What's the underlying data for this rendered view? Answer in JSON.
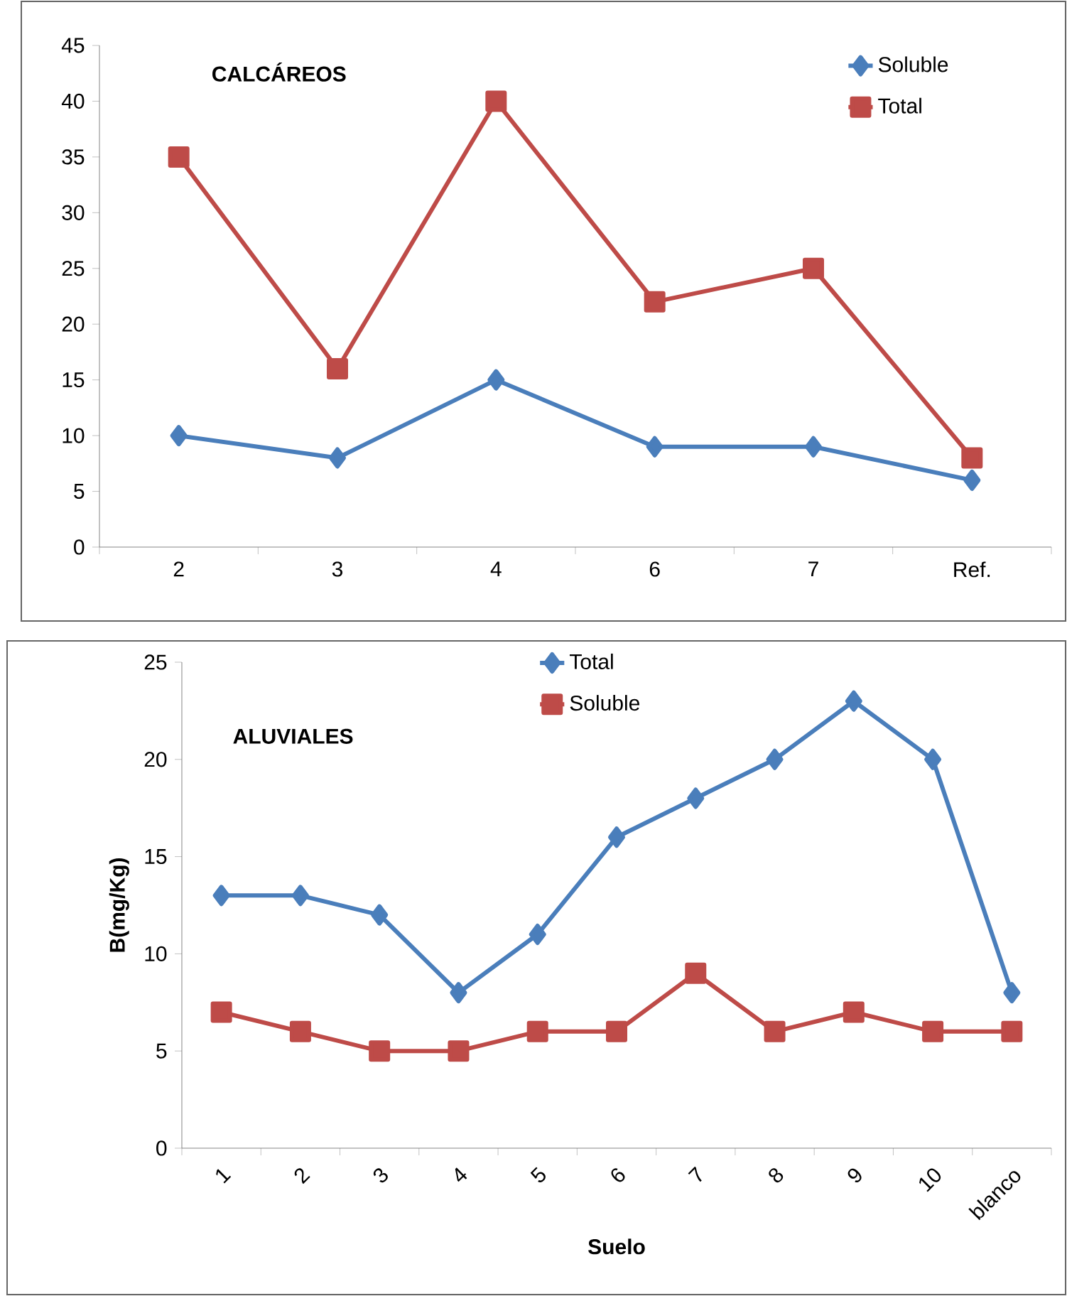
{
  "chart_data": [
    {
      "type": "line",
      "title": "CALCÁREOS",
      "categories": [
        "2",
        "3",
        "4",
        "6",
        "7",
        "Ref."
      ],
      "series": [
        {
          "name": "Soluble",
          "color": "#4a7ebb",
          "marker": "diamond",
          "values": [
            10,
            8,
            15,
            9,
            9,
            6
          ]
        },
        {
          "name": "Total",
          "color": "#be4b48",
          "marker": "square",
          "values": [
            35,
            16,
            40,
            22,
            25,
            8
          ]
        }
      ],
      "ylim": [
        0,
        45
      ],
      "yticks": [
        0,
        5,
        10,
        15,
        20,
        25,
        30,
        35,
        40,
        45
      ],
      "legend": "top right",
      "grid": false
    },
    {
      "type": "line",
      "title": "ALUVIALES",
      "xlabel": "Suelo",
      "ylabel": "B(mg/Kg)",
      "categories": [
        "1",
        "2",
        "3",
        "4",
        "5",
        "6",
        "7",
        "8",
        "9",
        "10",
        "blanco"
      ],
      "series": [
        {
          "name": "Total",
          "color": "#4a7ebb",
          "marker": "diamond",
          "values": [
            13,
            13,
            12,
            8,
            11,
            16,
            18,
            20,
            23,
            20,
            8
          ]
        },
        {
          "name": "Soluble",
          "color": "#be4b48",
          "marker": "square",
          "values": [
            7,
            6,
            5,
            5,
            6,
            6,
            9,
            6,
            7,
            6,
            6
          ]
        }
      ],
      "ylim": [
        0,
        25
      ],
      "yticks": [
        0,
        5,
        10,
        15,
        20,
        25
      ],
      "legend": "top",
      "grid": false
    }
  ]
}
